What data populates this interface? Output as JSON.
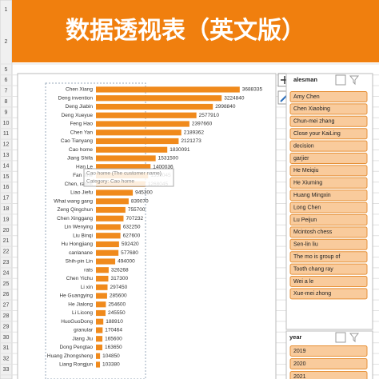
{
  "header": {
    "title": "数据透视表（英文版）"
  },
  "row_numbers": [
    1,
    2,
    5,
    6,
    7,
    8,
    9,
    10,
    11,
    12,
    13,
    14,
    15,
    16,
    17,
    18,
    19,
    20,
    21,
    22,
    23,
    24,
    25,
    26,
    27,
    28,
    29,
    30,
    31,
    32,
    33
  ],
  "chart_data": {
    "type": "bar",
    "orientation": "horizontal",
    "categories": [
      "Chen Xiang",
      "Deng invention",
      "Deng Jiabin",
      "Deng Xueyue",
      "Feng Hao",
      "Chen Yan",
      "Cao Tianyang",
      "Cao home",
      "Jiang Shifa",
      "Han Le",
      "Fan Jine",
      "Chen, rabbit",
      "Liao Jiefu",
      "What wang gang",
      "Zeng Qingchun",
      "Chen Xinggang",
      "Lin Wenying",
      "Liu Binqi",
      "Hu Hongjiang",
      "canlanane",
      "Shih-pin Lin",
      "rats",
      "Chen Yichu",
      "Li xin",
      "He Guangying",
      "He Jialong",
      "Li Licong",
      "HuoGuoDong",
      "granular",
      "Jiang Jiu",
      "Dong Pengtao",
      "Huang Zhongsheng",
      "Liang Rongjun"
    ],
    "values": [
      3688335,
      3224840,
      2998840,
      2577910,
      2397660,
      2189362,
      2121273,
      1830091,
      1531500,
      1400036,
      1339045,
      1268045,
      945300,
      839070,
      755700,
      707232,
      632250,
      627600,
      592420,
      577680,
      494000,
      326268,
      317300,
      297450,
      285600,
      254600,
      245550,
      188910,
      170464,
      165600,
      163650,
      104850,
      103380
    ],
    "color": "#f08a1c",
    "xlim": [
      0,
      4000000
    ]
  },
  "tooltip": {
    "lines": [
      "Cao home (The customer name)",
      "Category: Cao home"
    ]
  },
  "slicers": [
    {
      "header": "alesman",
      "items": [
        "Amy Chen",
        "Chen Xiaobing",
        "Chun-mei zhang",
        "Close your KaiLing",
        "decision",
        "garjier",
        "He Meiqiu",
        "He Xiuming",
        "Huang Mingxin",
        "Long Chen",
        "Lu Peijun",
        "Mcintosh chess",
        "Sen-lin liu",
        "The mo is group of",
        "Tooth chang ray",
        "Wei a le",
        "Xue-mei zhong"
      ]
    },
    {
      "header": "year",
      "items": [
        "2019",
        "2020",
        "2021"
      ]
    }
  ]
}
